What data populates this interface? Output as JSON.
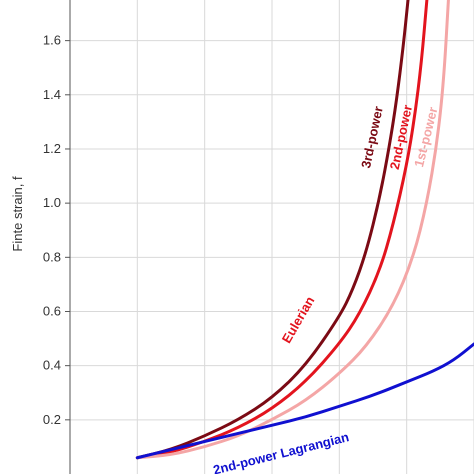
{
  "chart_data": {
    "type": "line",
    "title": "",
    "xlabel": "",
    "ylabel": "Finte strain, f",
    "ylim": [
      0,
      1.75
    ],
    "xlim": [
      0,
      6
    ],
    "yticks": [
      0.2,
      0.4,
      0.6,
      0.8,
      1.0,
      1.2,
      1.4,
      1.6
    ],
    "ytick_labels": [
      "0.2",
      "0.4",
      "0.6",
      "0.8",
      "1.0",
      "1.2",
      "1.4",
      "1.6"
    ],
    "xgrid": [
      1,
      2,
      3,
      4,
      5,
      6
    ],
    "grid": true,
    "legend": "none",
    "group_label": "Eulerian",
    "series": [
      {
        "name": "3rd-power",
        "color": "#7b0a14",
        "x": [
          1,
          1.5,
          2,
          2.5,
          3,
          3.5,
          4,
          4.2,
          4.4,
          4.6,
          4.75,
          4.85,
          4.95,
          5.02
        ],
        "y": [
          0.06,
          0.09,
          0.14,
          0.2,
          0.28,
          0.4,
          0.58,
          0.68,
          0.82,
          1.02,
          1.22,
          1.38,
          1.58,
          1.75
        ]
      },
      {
        "name": "2nd-power",
        "color": "#e3141e",
        "x": [
          1,
          1.5,
          2,
          2.5,
          3,
          3.5,
          4,
          4.3,
          4.6,
          4.8,
          5.0,
          5.12,
          5.22,
          5.3
        ],
        "y": [
          0.06,
          0.08,
          0.12,
          0.17,
          0.24,
          0.34,
          0.48,
          0.59,
          0.75,
          0.92,
          1.14,
          1.32,
          1.52,
          1.75
        ]
      },
      {
        "name": "1st-power",
        "color": "#f4a6a6",
        "x": [
          1,
          1.5,
          2,
          2.5,
          3,
          3.5,
          4,
          4.4,
          4.8,
          5.1,
          5.3,
          5.45,
          5.55,
          5.62
        ],
        "y": [
          0.06,
          0.07,
          0.1,
          0.14,
          0.2,
          0.27,
          0.37,
          0.47,
          0.62,
          0.8,
          1.0,
          1.22,
          1.45,
          1.75
        ]
      },
      {
        "name": "2nd-power Lagrangian",
        "color": "#1010d0",
        "x": [
          1,
          1.5,
          2,
          2.5,
          3,
          3.5,
          4,
          4.5,
          5,
          5.4,
          5.7,
          6
        ],
        "y": [
          0.06,
          0.09,
          0.12,
          0.15,
          0.18,
          0.21,
          0.25,
          0.29,
          0.34,
          0.38,
          0.42,
          0.48
        ]
      }
    ]
  }
}
